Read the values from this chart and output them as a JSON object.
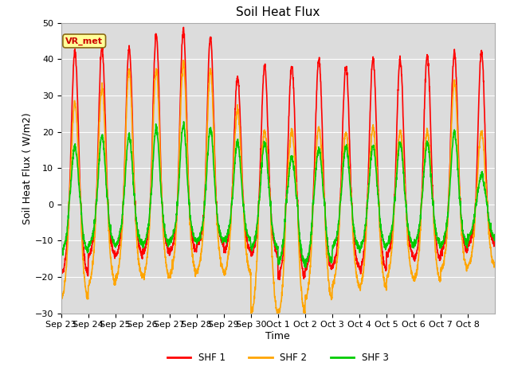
{
  "title": "Soil Heat Flux",
  "xlabel": "Time",
  "ylabel": "Soil Heat Flux ( W/m2)",
  "ylim": [
    -30,
    50
  ],
  "yticks": [
    -30,
    -20,
    -10,
    0,
    10,
    20,
    30,
    40,
    50
  ],
  "plot_bg_color": "#dcdcdc",
  "fig_bg_color": "#ffffff",
  "grid_color": "#ffffff",
  "line_colors": {
    "SHF 1": "#ff0000",
    "SHF 2": "#ffa500",
    "SHF 3": "#00cc00"
  },
  "line_widths": {
    "SHF 1": 1.2,
    "SHF 2": 1.2,
    "SHF 3": 1.2
  },
  "annotation_text": "VR_met",
  "x_tick_labels": [
    "Sep 23",
    "Sep 24",
    "Sep 25",
    "Sep 26",
    "Sep 27",
    "Sep 28",
    "Sep 29",
    "Sep 30",
    "Oct 1",
    "Oct 2",
    "Oct 3",
    "Oct 4",
    "Oct 5",
    "Oct 6",
    "Oct 7",
    "Oct 8"
  ],
  "n_days": 16,
  "title_fontsize": 11,
  "label_fontsize": 9,
  "tick_fontsize": 8,
  "shf1_peaks": [
    42,
    43,
    43,
    47,
    48,
    46,
    35,
    38,
    38,
    40,
    38,
    40,
    40,
    41,
    42,
    42
  ],
  "shf2_peaks": [
    28,
    32,
    37,
    37,
    39,
    37,
    26,
    20,
    20,
    21,
    20,
    21,
    20,
    20,
    34,
    20
  ],
  "shf3_peaks": [
    16,
    19,
    19,
    21,
    22,
    21,
    17,
    17,
    13,
    15,
    16,
    16,
    17,
    17,
    20,
    8
  ],
  "shf1_troughs": [
    -19,
    -14,
    -14,
    -13,
    -13,
    -11,
    -13,
    -14,
    -20,
    -18,
    -17,
    -18,
    -14,
    -15,
    -13,
    -11
  ],
  "shf2_troughs": [
    -26,
    -22,
    -20,
    -20,
    -19,
    -18,
    -19,
    -30,
    -30,
    -26,
    -22,
    -23,
    -20,
    -21,
    -18,
    -17
  ],
  "shf3_troughs": [
    -13,
    -11,
    -11,
    -11,
    -10,
    -10,
    -10,
    -12,
    -16,
    -16,
    -12,
    -12,
    -11,
    -11,
    -11,
    -9
  ]
}
